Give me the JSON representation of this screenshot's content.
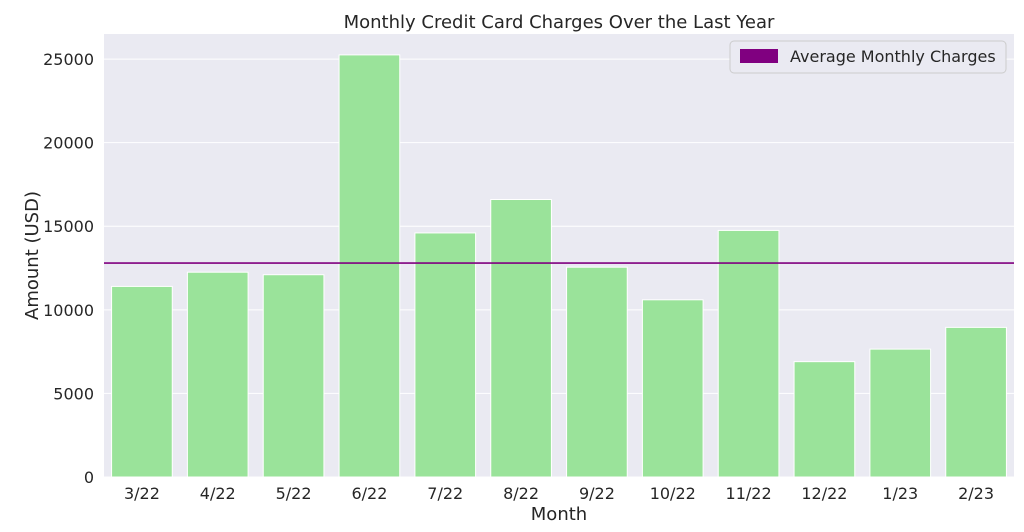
{
  "chart_data": {
    "type": "bar",
    "title": "Monthly Credit Card Charges Over the Last Year",
    "xlabel": "Month",
    "ylabel": "Amount (USD)",
    "categories": [
      "3/22",
      "4/22",
      "5/22",
      "6/22",
      "7/22",
      "8/22",
      "9/22",
      "10/22",
      "11/22",
      "12/22",
      "1/23",
      "2/23"
    ],
    "values": [
      11400,
      12250,
      12100,
      25250,
      14600,
      16600,
      12550,
      10600,
      14750,
      6900,
      7650,
      8950
    ],
    "ylim": [
      0,
      26500
    ],
    "yticks": [
      0,
      5000,
      10000,
      15000,
      20000,
      25000
    ],
    "average_line": {
      "name": "Average Monthly Charges",
      "value": 12800
    },
    "legend": {
      "entries": [
        "Average Monthly Charges"
      ],
      "placement": "top-right"
    },
    "grid": true,
    "colors": {
      "bar": "#9AE39A",
      "average_line": "#800080",
      "plot_background": "#EAEAF2",
      "grid": "#ffffff"
    }
  }
}
